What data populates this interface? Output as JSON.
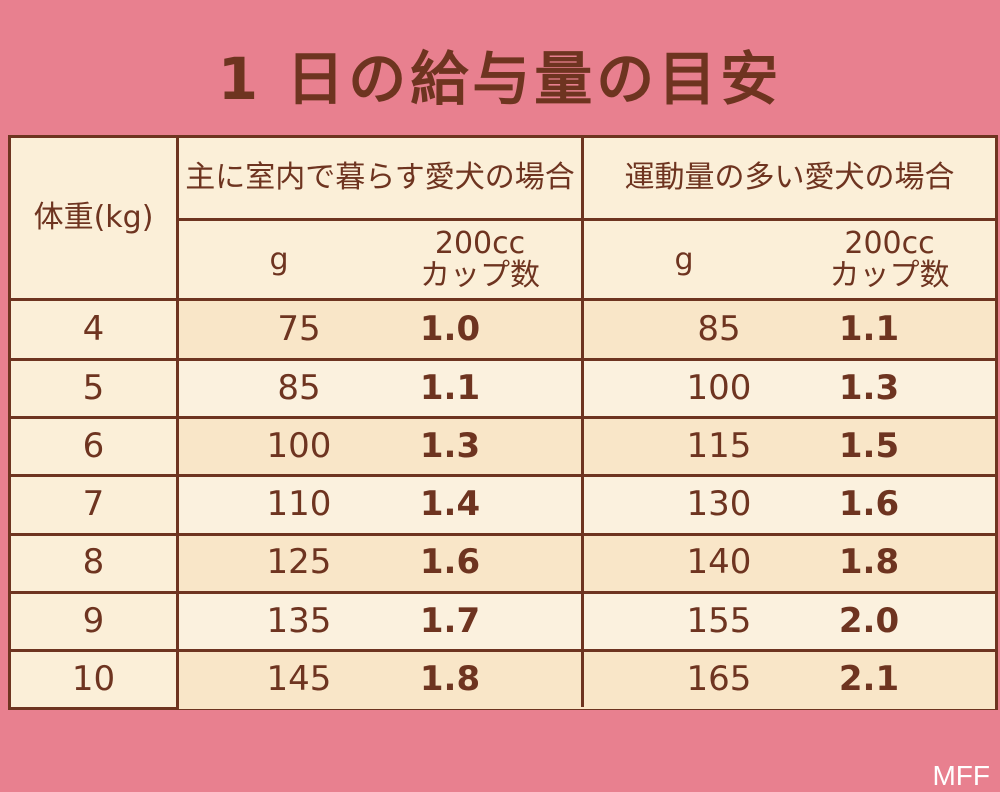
{
  "title": "1 日の給与量の目安",
  "header": {
    "weight_label": "体重(kg)",
    "group1": "主に室内で暮らす愛犬の場合",
    "group2": "運動量の多い愛犬の場合",
    "g_label": "g",
    "cup_label_line1": "200cc",
    "cup_label_line2": "カップ数"
  },
  "rows": [
    {
      "w": "4",
      "g1": "75",
      "c1": "1.0",
      "g2": "85",
      "c2": "1.1"
    },
    {
      "w": "5",
      "g1": "85",
      "c1": "1.1",
      "g2": "100",
      "c2": "1.3"
    },
    {
      "w": "6",
      "g1": "100",
      "c1": "1.3",
      "g2": "115",
      "c2": "1.5"
    },
    {
      "w": "7",
      "g1": "110",
      "c1": "1.4",
      "g2": "130",
      "c2": "1.6"
    },
    {
      "w": "8",
      "g1": "125",
      "c1": "1.6",
      "g2": "140",
      "c2": "1.8"
    },
    {
      "w": "9",
      "g1": "135",
      "c1": "1.7",
      "g2": "155",
      "c2": "2.0"
    },
    {
      "w": "10",
      "g1": "145",
      "c1": "1.8",
      "g2": "165",
      "c2": "2.1"
    }
  ],
  "watermark": "MFF",
  "colors": {
    "background": "#e8808f",
    "table": "#fbefd8",
    "text": "#6e3420"
  }
}
